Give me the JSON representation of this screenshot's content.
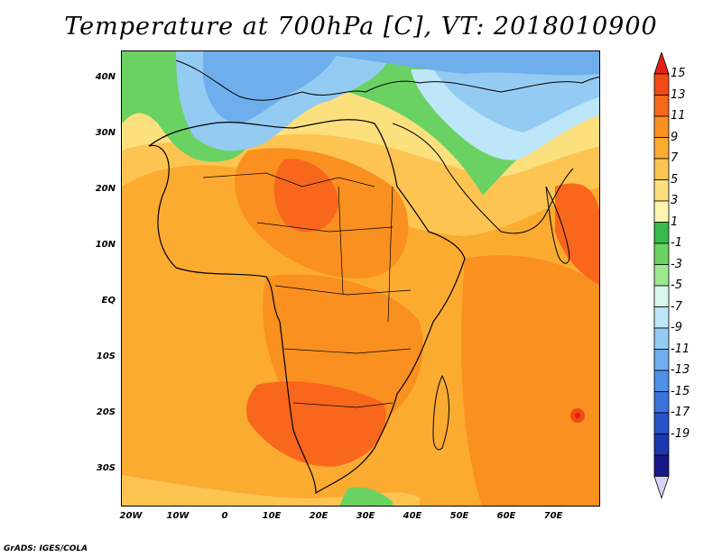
{
  "title": "Temperature at 700hPa [C], VT: 2018010900",
  "footer": "GrADS: IGES/COLA",
  "map": {
    "lat_labels": [
      "40N",
      "30N",
      "20N",
      "10N",
      "EQ",
      "10S",
      "20S",
      "30S"
    ],
    "lon_labels": [
      "20W",
      "10W",
      "0",
      "10E",
      "20E",
      "30E",
      "40E",
      "50E",
      "60E",
      "70E"
    ]
  },
  "colorbar": {
    "labels": [
      "15",
      "13",
      "11",
      "9",
      "7",
      "5",
      "3",
      "1",
      "-1",
      "-3",
      "-5",
      "-7",
      "-9",
      "-11",
      "-13",
      "-15",
      "-17",
      "-19"
    ],
    "colors": {
      "top_arrow": "#e02010",
      "bottom_arrow": "#d6d4f6",
      "bins": [
        "#f24a14",
        "#f8671c",
        "#f99020",
        "#fbab30",
        "#fdc452",
        "#fde07e",
        "#fff5b0",
        "#36b94a",
        "#6ad262",
        "#9de78f",
        "#d8f8ea",
        "#bde6f8",
        "#94cbf2",
        "#6eaeec",
        "#4e90e6",
        "#3a72dc",
        "#2553c8",
        "#1c37b0",
        "#17188a"
      ]
    }
  }
}
